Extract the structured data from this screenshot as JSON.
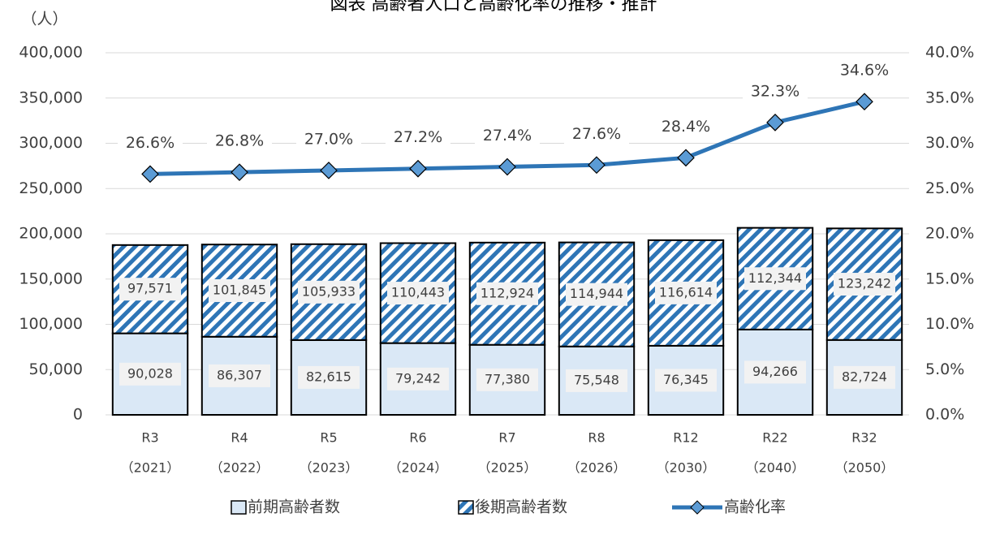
{
  "chart_data": {
    "type": "bar",
    "title": "図表 高齢者人口と高齢化率の推移・推計",
    "y_axis_label": "（人）",
    "categories": [
      [
        "R3",
        "（2021）"
      ],
      [
        "R4",
        "（2022）"
      ],
      [
        "R5",
        "（2023）"
      ],
      [
        "R6",
        "（2024）"
      ],
      [
        "R7",
        "（2025）"
      ],
      [
        "R8",
        "（2026）"
      ],
      [
        "R12",
        "（2030）"
      ],
      [
        "R22",
        "（2040）"
      ],
      [
        "R32",
        "（2050）"
      ]
    ],
    "series": [
      {
        "name": "前期高齢者数",
        "color": "#dae8f6",
        "type": "bar",
        "values": [
          90028,
          86307,
          82615,
          79242,
          77380,
          75548,
          76345,
          94266,
          82724
        ],
        "value_labels": [
          "90,028",
          "86,307",
          "82,615",
          "79,242",
          "77,380",
          "75,548",
          "76,345",
          "94,266",
          "82,724"
        ]
      },
      {
        "name": "後期高齢者数",
        "color": "#2e75b6",
        "type": "bar",
        "pattern": "hatch",
        "values": [
          97571,
          101845,
          105933,
          110443,
          112924,
          114944,
          116614,
          112344,
          123242
        ],
        "value_labels": [
          "97,571",
          "101,845",
          "105,933",
          "110,443",
          "112,924",
          "114,944",
          "116,614",
          "112,344",
          "123,242"
        ]
      },
      {
        "name": "高齢化率",
        "color": "#2e75b6",
        "type": "line",
        "axis": "y2",
        "values": [
          26.6,
          26.8,
          27.0,
          27.2,
          27.4,
          27.6,
          28.4,
          32.3,
          34.6
        ],
        "value_labels": [
          "26.6%",
          "26.8%",
          "27.0%",
          "27.2%",
          "27.4%",
          "27.6%",
          "28.4%",
          "32.3%",
          "34.6%"
        ]
      }
    ],
    "stacked": true,
    "ylim": [
      0,
      400000
    ],
    "yticks": [
      0,
      {
        "value": 50000,
        "label": "50,000"
      },
      {
        "value": 100000,
        "label": "100,000"
      },
      {
        "value": 150000,
        "label": "150,000"
      },
      {
        "value": 200000,
        "label": "200,000"
      },
      {
        "value": 250000,
        "label": "250,000"
      },
      {
        "value": 300000,
        "label": "300,000"
      },
      {
        "value": 350000,
        "label": "350,000"
      },
      {
        "value": 400000,
        "label": "400,000"
      }
    ],
    "y2lim": [
      0,
      40
    ],
    "y2ticks": [
      {
        "value": 0,
        "label": "0.0%"
      },
      {
        "value": 5,
        "label": "5.0%"
      },
      {
        "value": 10,
        "label": "10.0%"
      },
      {
        "value": 15,
        "label": "15.0%"
      },
      {
        "value": 20,
        "label": "20.0%"
      },
      {
        "value": 25,
        "label": "25.0%"
      },
      {
        "value": 30,
        "label": "30.0%"
      },
      {
        "value": 35,
        "label": "35.0%"
      },
      {
        "value": 40,
        "label": "40.0%"
      }
    ],
    "grid": true,
    "legend": "bottom"
  }
}
